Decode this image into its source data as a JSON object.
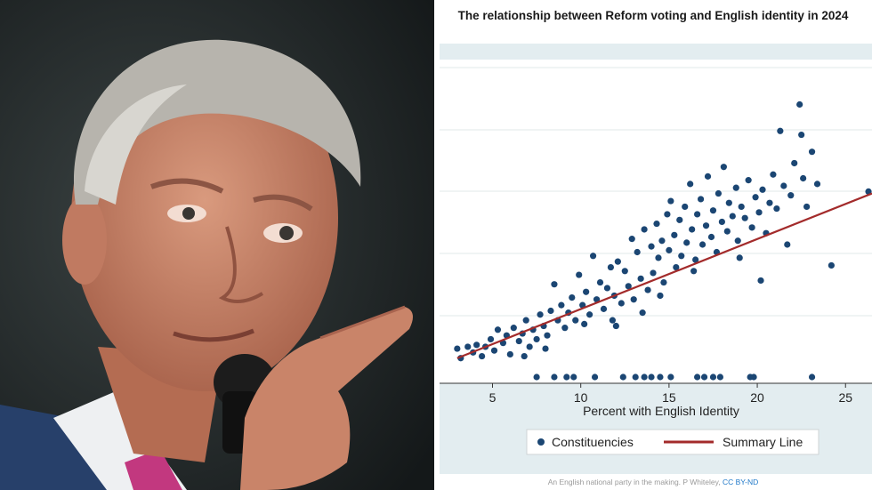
{
  "photo": {
    "description_icon": "photo-icon"
  },
  "chart_data": {
    "type": "scatter",
    "title": "The relationship between Reform voting and English identity in 2024",
    "xlabel": "Percent with English Identity",
    "ylabel": "",
    "xlim": [
      2,
      26.5
    ],
    "ylim": [
      0,
      14
    ],
    "x_ticks": [
      "5",
      "10",
      "15",
      "20",
      "25"
    ],
    "grid": true,
    "legend_position": "bottom",
    "series": [
      {
        "name": "Constituencies",
        "points": [
          [
            3.0,
            1.5
          ],
          [
            3.2,
            1.0
          ],
          [
            3.6,
            1.6
          ],
          [
            3.9,
            1.3
          ],
          [
            4.1,
            1.7
          ],
          [
            4.4,
            1.1
          ],
          [
            4.6,
            1.6
          ],
          [
            4.9,
            2.0
          ],
          [
            5.1,
            1.4
          ],
          [
            5.3,
            2.5
          ],
          [
            5.6,
            1.8
          ],
          [
            5.8,
            2.2
          ],
          [
            6.0,
            1.2
          ],
          [
            6.2,
            2.6
          ],
          [
            6.5,
            1.9
          ],
          [
            6.7,
            2.3
          ],
          [
            6.9,
            3.0
          ],
          [
            7.1,
            1.6
          ],
          [
            7.3,
            2.5
          ],
          [
            7.5,
            2.0
          ],
          [
            7.7,
            3.3
          ],
          [
            7.9,
            2.7
          ],
          [
            8.1,
            2.2
          ],
          [
            8.3,
            3.5
          ],
          [
            8.5,
            4.9
          ],
          [
            8.7,
            3.0
          ],
          [
            8.9,
            3.8
          ],
          [
            9.1,
            2.6
          ],
          [
            9.3,
            3.4
          ],
          [
            9.5,
            4.2
          ],
          [
            9.7,
            3.0
          ],
          [
            9.9,
            5.4
          ],
          [
            10.1,
            3.8
          ],
          [
            10.3,
            4.5
          ],
          [
            10.5,
            3.3
          ],
          [
            10.7,
            6.4
          ],
          [
            10.9,
            4.1
          ],
          [
            11.1,
            5.0
          ],
          [
            11.3,
            3.6
          ],
          [
            11.5,
            4.7
          ],
          [
            11.7,
            5.8
          ],
          [
            11.9,
            4.3
          ],
          [
            12.1,
            6.1
          ],
          [
            12.3,
            3.9
          ],
          [
            12.5,
            5.6
          ],
          [
            12.7,
            4.8
          ],
          [
            12.9,
            7.3
          ],
          [
            13.0,
            4.1
          ],
          [
            13.2,
            6.6
          ],
          [
            13.4,
            5.2
          ],
          [
            13.6,
            7.8
          ],
          [
            13.8,
            4.6
          ],
          [
            14.0,
            6.9
          ],
          [
            14.1,
            5.5
          ],
          [
            14.3,
            8.1
          ],
          [
            14.4,
            6.3
          ],
          [
            14.6,
            7.2
          ],
          [
            14.7,
            5.0
          ],
          [
            14.9,
            8.6
          ],
          [
            15.0,
            6.7
          ],
          [
            15.1,
            9.3
          ],
          [
            15.3,
            7.5
          ],
          [
            15.4,
            5.8
          ],
          [
            15.6,
            8.3
          ],
          [
            15.7,
            6.4
          ],
          [
            15.9,
            9.0
          ],
          [
            16.0,
            7.1
          ],
          [
            16.2,
            10.2
          ],
          [
            16.3,
            7.8
          ],
          [
            16.5,
            6.2
          ],
          [
            16.6,
            8.6
          ],
          [
            16.8,
            9.4
          ],
          [
            16.9,
            7.0
          ],
          [
            17.1,
            8.0
          ],
          [
            17.2,
            10.6
          ],
          [
            17.4,
            7.4
          ],
          [
            17.5,
            8.8
          ],
          [
            17.7,
            6.6
          ],
          [
            17.8,
            9.7
          ],
          [
            18.0,
            8.2
          ],
          [
            18.1,
            11.1
          ],
          [
            18.3,
            7.7
          ],
          [
            18.4,
            9.2
          ],
          [
            18.6,
            8.5
          ],
          [
            18.8,
            10.0
          ],
          [
            18.9,
            7.2
          ],
          [
            19.1,
            9.0
          ],
          [
            19.3,
            8.4
          ],
          [
            19.5,
            10.4
          ],
          [
            19.7,
            7.9
          ],
          [
            19.9,
            9.5
          ],
          [
            20.1,
            8.7
          ],
          [
            20.3,
            9.9
          ],
          [
            20.5,
            7.6
          ],
          [
            20.7,
            9.2
          ],
          [
            20.9,
            10.7
          ],
          [
            21.1,
            8.9
          ],
          [
            21.3,
            13.0
          ],
          [
            21.5,
            10.1
          ],
          [
            21.7,
            7.0
          ],
          [
            21.9,
            9.6
          ],
          [
            22.1,
            11.3
          ],
          [
            22.4,
            14.4
          ],
          [
            22.6,
            10.5
          ],
          [
            22.8,
            9.0
          ],
          [
            23.1,
            11.9
          ],
          [
            23.4,
            10.2
          ],
          [
            24.2,
            5.9
          ],
          [
            26.3,
            9.8
          ],
          [
            22.5,
            12.8
          ],
          [
            12.0,
            2.7
          ],
          [
            8.0,
            1.5
          ],
          [
            6.8,
            1.1
          ],
          [
            10.2,
            2.8
          ],
          [
            14.5,
            4.3
          ],
          [
            16.4,
            5.6
          ],
          [
            19.0,
            6.3
          ],
          [
            20.2,
            5.1
          ],
          [
            13.5,
            3.4
          ],
          [
            11.8,
            3.0
          ],
          [
            7.5,
            0.0
          ],
          [
            8.5,
            0.0
          ],
          [
            9.2,
            0.0
          ],
          [
            9.6,
            0.0
          ],
          [
            10.8,
            0.0
          ],
          [
            12.4,
            0.0
          ],
          [
            13.1,
            0.0
          ],
          [
            13.6,
            0.0
          ],
          [
            14.0,
            0.0
          ],
          [
            14.5,
            0.0
          ],
          [
            15.1,
            0.0
          ],
          [
            16.6,
            0.0
          ],
          [
            17.0,
            0.0
          ],
          [
            17.5,
            0.0
          ],
          [
            17.9,
            0.0
          ],
          [
            19.6,
            0.0
          ],
          [
            19.8,
            0.0
          ],
          [
            23.1,
            0.0
          ]
        ]
      }
    ],
    "summary_line": {
      "name": "Summary Line",
      "x": [
        3.0,
        26.5
      ],
      "y": [
        1.0,
        9.7
      ]
    },
    "colors": {
      "points": "#1b4673",
      "line": "#a32b2b",
      "band": "#e3edf0"
    }
  },
  "caption": {
    "text": "An English national party in the making. P Whiteley, ",
    "license": "CC BY-ND"
  }
}
